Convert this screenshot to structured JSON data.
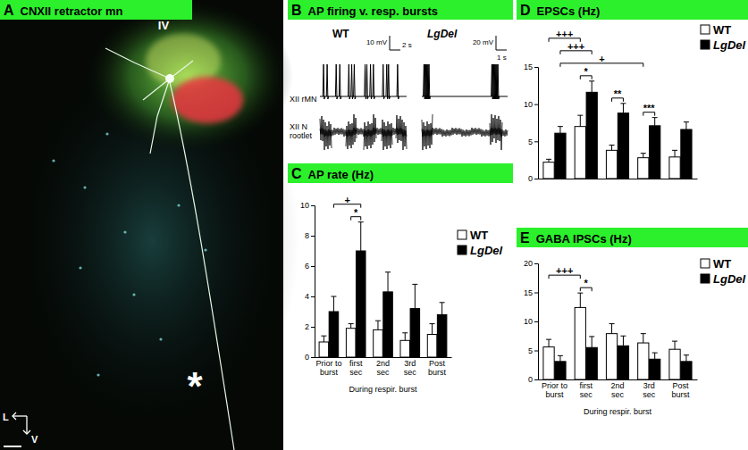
{
  "panel_a": {
    "title": "A CNXII retractor mn",
    "labels": [
      "IV",
      "*",
      "L",
      "V"
    ]
  },
  "panel_b": {
    "title": "B AP firing v. resp. bursts",
    "row_labels": [
      "XII rMN",
      "XII N rootlet"
    ],
    "traces": [
      {
        "name": "WT",
        "scale_bar": [
          "10 mV",
          "2 s"
        ],
        "duration": 24,
        "spikes": [
          1,
          2,
          4.5,
          5.5,
          8,
          8.8,
          9.5,
          12.5,
          13,
          14,
          14.8,
          17.5,
          18.5,
          19,
          21.5
        ],
        "bursts": [
          [
            0,
            3.2
          ],
          [
            7.2,
            10.2
          ],
          [
            12,
            15.5
          ],
          [
            17,
            20
          ],
          [
            21,
            24
          ]
        ]
      },
      {
        "name": "LgDel",
        "scale_bar": [
          "20 mV",
          "1 s"
        ],
        "duration": 6,
        "spikes": [
          0.15,
          0.22,
          0.29,
          0.36,
          0.43,
          0.5,
          4.9,
          4.97,
          5.04,
          5.11,
          5.18,
          5.25,
          5.32
        ],
        "bursts": [
          [
            0,
            0.75
          ],
          [
            4.75,
            5.6
          ]
        ]
      }
    ]
  },
  "chart_data": [
    {
      "type": "bar",
      "title": "C AP rate (Hz)",
      "xlabel": "During respir. burst",
      "categories": [
        "Prior to burst",
        "first sec",
        "2nd sec",
        "3rd sec",
        "Post burst"
      ],
      "series": [
        {
          "name": "WT",
          "color": "#ffffff",
          "values": [
            1.0,
            1.9,
            1.8,
            1.1,
            1.5
          ],
          "errors": [
            0.4,
            0.3,
            0.6,
            0.5,
            0.7
          ]
        },
        {
          "name": "LgDel",
          "color": "#000000",
          "values": [
            3.0,
            7.0,
            4.3,
            3.2,
            2.8
          ],
          "errors": [
            1.0,
            1.9,
            1.3,
            1.6,
            0.8
          ]
        }
      ],
      "ylim": [
        0,
        10
      ],
      "yticks": [
        0,
        2,
        4,
        6,
        8,
        10
      ],
      "legend": "upper right",
      "annotations": [
        {
          "text": "*",
          "from": [
            0,
            1
          ],
          "to": [
            1,
            1
          ]
        },
        {
          "text": "+",
          "from": [
            1,
            0
          ],
          "to": [
            1,
            1
          ]
        }
      ]
    },
    {
      "type": "bar",
      "title": "D EPSCs (Hz)",
      "categories": [
        null,
        null,
        null,
        null,
        null
      ],
      "series": [
        {
          "name": "WT",
          "color": "#ffffff",
          "values": [
            2.2,
            7.0,
            3.8,
            2.8,
            2.9
          ],
          "errors": [
            0.4,
            1.5,
            0.7,
            0.6,
            0.9
          ]
        },
        {
          "name": "LgDel",
          "color": "#000000",
          "values": [
            6.1,
            11.6,
            8.8,
            7.1,
            6.6
          ],
          "errors": [
            0.9,
            1.5,
            1.3,
            1.1,
            1.0
          ]
        }
      ],
      "ylim": [
        0,
        15
      ],
      "yticks": [
        0,
        5,
        10,
        15
      ],
      "legend": "upper right",
      "tick_labels": "y",
      "annotations": [
        {
          "text": "*",
          "from": [
            0,
            1
          ],
          "to": [
            1,
            1
          ]
        },
        {
          "text": "**",
          "from": [
            0,
            2
          ],
          "to": [
            1,
            2
          ]
        },
        {
          "text": "***",
          "from": [
            0,
            3
          ],
          "to": [
            1,
            3
          ]
        },
        {
          "text": "+",
          "from": [
            1,
            0
          ],
          "to": [
            0,
            3
          ]
        },
        {
          "text": "+++",
          "from": [
            1,
            0
          ],
          "to": [
            1,
            1
          ]
        },
        {
          "text": "+++",
          "from": [
            0,
            0
          ],
          "to": [
            0,
            1
          ]
        }
      ]
    },
    {
      "type": "bar",
      "title": "E GABA IPSCs (Hz)",
      "xlabel": "During respir. burst",
      "categories": [
        "Prior to burst",
        "first sec",
        "2nd sec",
        "3rd sec",
        "Post burst"
      ],
      "series": [
        {
          "name": "WT",
          "color": "#ffffff",
          "values": [
            5.6,
            12.4,
            7.9,
            6.3,
            5.2
          ],
          "errors": [
            1.3,
            2.5,
            1.7,
            1.6,
            1.4
          ]
        },
        {
          "name": "LgDel",
          "color": "#000000",
          "values": [
            3.1,
            5.5,
            5.8,
            3.5,
            3.1
          ],
          "errors": [
            1.0,
            1.9,
            1.7,
            1.1,
            1.1
          ]
        }
      ],
      "ylim": [
        0,
        20
      ],
      "yticks": [
        0,
        5,
        10,
        15,
        20
      ],
      "legend": "upper right",
      "annotations": [
        {
          "text": "*",
          "from": [
            0,
            1
          ],
          "to": [
            1,
            1
          ]
        },
        {
          "text": "+++",
          "from": [
            0,
            0
          ],
          "to": [
            0,
            1
          ]
        }
      ]
    }
  ]
}
